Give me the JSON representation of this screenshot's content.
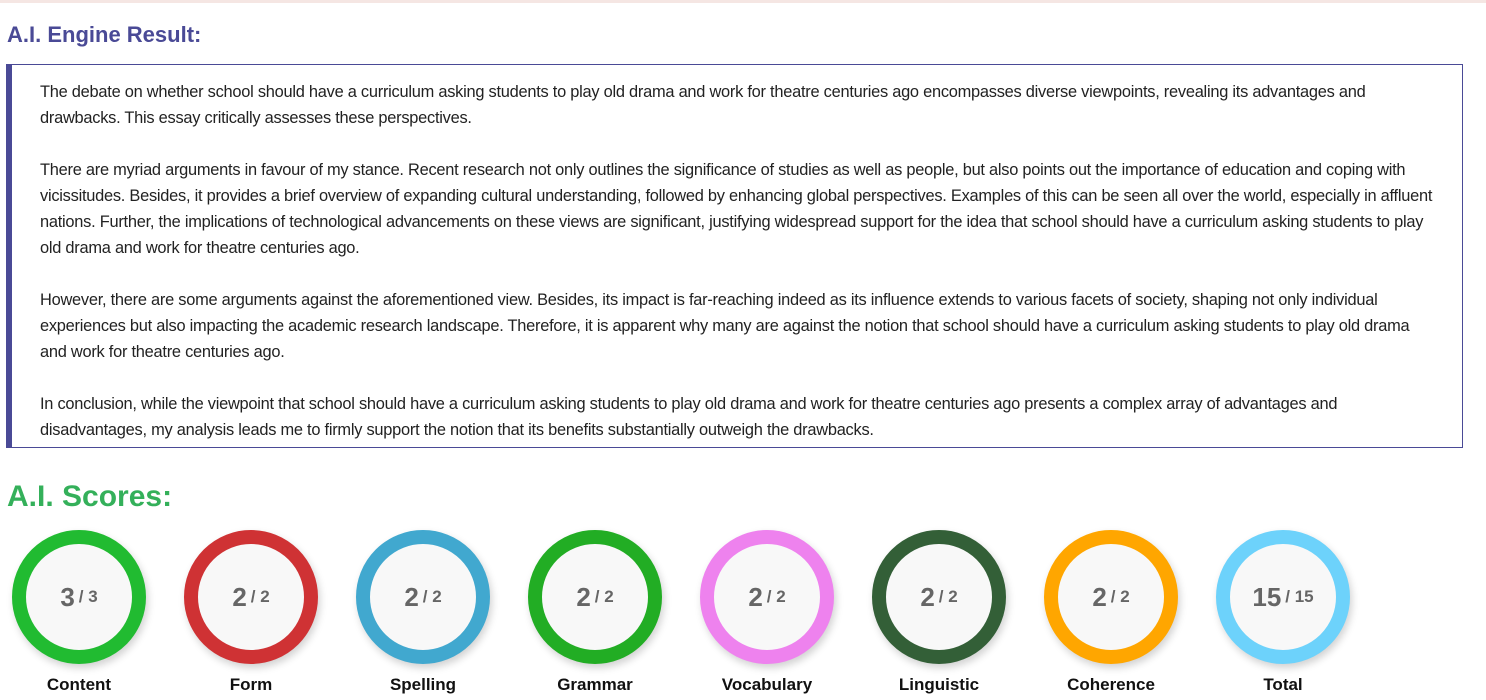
{
  "engine_result": {
    "title": "A.I. Engine Result:",
    "paragraphs": [
      "The debate on whether school should have a curriculum asking students to play old drama and work for theatre centuries ago encompasses diverse viewpoints, revealing its advantages and drawbacks. This essay critically assesses these perspectives.",
      "There are myriad arguments in favour of my stance. Recent research not only outlines the significance of studies as well as people, but also points out the importance of education and coping with vicissitudes. Besides, it provides a brief overview of expanding cultural understanding, followed by enhancing global perspectives. Examples of this can be seen all over the world, especially in affluent nations. Further, the implications of technological advancements on these views are significant, justifying widespread support for the idea that school should have a curriculum asking students to play old drama and work for theatre centuries ago.",
      "However, there are some arguments against the aforementioned view. Besides, its impact is far-reaching indeed as its influence extends to various facets of society, shaping not only individual experiences but also impacting the academic research landscape. Therefore, it is apparent why many are against the notion that school should have a curriculum asking students to play old drama and work for theatre centuries ago.",
      "In conclusion, while the viewpoint that school should have a curriculum asking students to play old drama and work for theatre centuries ago presents a complex array of advantages and disadvantages, my analysis leads me to firmly support the notion that its benefits substantially outweigh the drawbacks."
    ],
    "accent_color": "#4a4a96"
  },
  "scores": {
    "title": "A.I. Scores:",
    "title_color": "#34b05a",
    "items": [
      {
        "label": "Content",
        "value": "3",
        "max": "/ 3",
        "color": "#21bb31"
      },
      {
        "label": "Form",
        "value": "2",
        "max": "/ 2",
        "color": "#cf3234"
      },
      {
        "label": "Spelling",
        "value": "2",
        "max": "/ 2",
        "color": "#41a8cf"
      },
      {
        "label": "Grammar",
        "value": "2",
        "max": "/ 2",
        "color": "#22ad24"
      },
      {
        "label": "Vocabulary",
        "value": "2",
        "max": "/ 2",
        "color": "#ee82ee"
      },
      {
        "label": "Linguistic",
        "value": "2",
        "max": "/ 2",
        "color": "#335f37"
      },
      {
        "label": "Coherence",
        "value": "2",
        "max": "/ 2",
        "color": "#ffa600"
      },
      {
        "label": "Total",
        "value": "15",
        "max": "/ 15",
        "color": "#6dd2fb"
      }
    ]
  }
}
